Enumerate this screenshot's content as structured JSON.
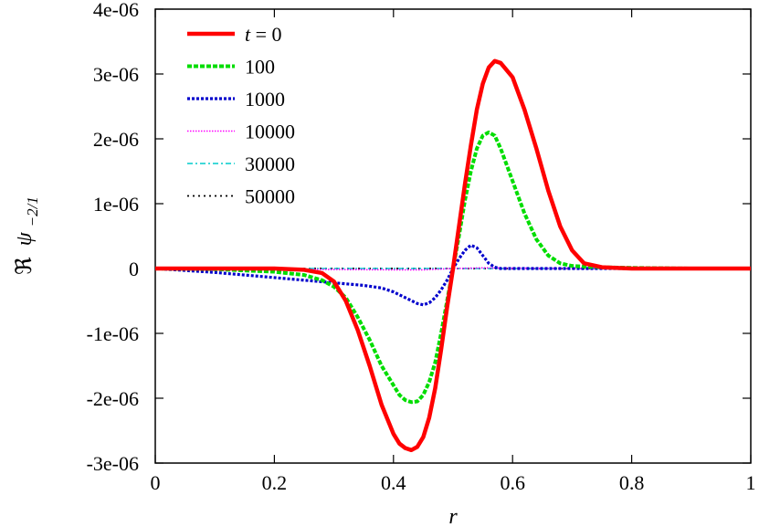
{
  "chart_data": {
    "type": "line",
    "xlabel": "r",
    "ylabel": "ℜ ψ−2/1",
    "ylabel_parts": {
      "prefix": "ℜ",
      "symbol": "ψ",
      "subscript": "−2/1"
    },
    "xlim": [
      0,
      1
    ],
    "ylim": [
      -3e-06,
      4e-06
    ],
    "xticks": [
      0,
      0.2,
      0.4,
      0.6,
      0.8,
      1
    ],
    "xtick_labels": [
      "0",
      "0.2",
      "0.4",
      "0.6",
      "0.8",
      "1"
    ],
    "yticks": [
      -3e-06,
      -2e-06,
      -1e-06,
      0,
      1e-06,
      2e-06,
      3e-06,
      4e-06
    ],
    "ytick_labels": [
      "-3e-06",
      "-2e-06",
      "-1e-06",
      "0",
      "1e-06",
      "2e-06",
      "3e-06",
      "4e-06"
    ],
    "grid": false,
    "legend_position": "top-left",
    "legend_title_prefix": "t = ",
    "series": [
      {
        "name": "0",
        "color": "#ff0000",
        "dash": "solid",
        "x": [
          0,
          0.05,
          0.1,
          0.15,
          0.2,
          0.25,
          0.28,
          0.3,
          0.32,
          0.34,
          0.36,
          0.38,
          0.4,
          0.41,
          0.42,
          0.43,
          0.44,
          0.45,
          0.46,
          0.47,
          0.48,
          0.49,
          0.5,
          0.51,
          0.52,
          0.53,
          0.54,
          0.55,
          0.56,
          0.57,
          0.58,
          0.6,
          0.62,
          0.64,
          0.66,
          0.68,
          0.7,
          0.72,
          0.75,
          0.8,
          0.9,
          1
        ],
        "y": [
          0,
          0,
          0,
          0,
          0,
          -2e-08,
          -7e-08,
          -2e-07,
          -5e-07,
          -9.5e-07,
          -1.5e-06,
          -2.1e-06,
          -2.55e-06,
          -2.7e-06,
          -2.77e-06,
          -2.8e-06,
          -2.75e-06,
          -2.6e-06,
          -2.3e-06,
          -1.85e-06,
          -1.25e-06,
          -6e-07,
          0,
          6.5e-07,
          1.3e-06,
          1.9e-06,
          2.45e-06,
          2.85e-06,
          3.1e-06,
          3.2e-06,
          3.17e-06,
          2.95e-06,
          2.45e-06,
          1.85e-06,
          1.2e-06,
          6.5e-07,
          2.8e-07,
          8e-08,
          2e-08,
          0,
          0,
          0
        ]
      },
      {
        "name": "100",
        "color": "#00dd00",
        "dash": "dash",
        "x": [
          0,
          0.1,
          0.2,
          0.25,
          0.28,
          0.3,
          0.32,
          0.34,
          0.36,
          0.38,
          0.4,
          0.41,
          0.42,
          0.43,
          0.44,
          0.45,
          0.46,
          0.47,
          0.48,
          0.49,
          0.5,
          0.51,
          0.52,
          0.53,
          0.54,
          0.55,
          0.56,
          0.57,
          0.58,
          0.6,
          0.62,
          0.64,
          0.66,
          0.68,
          0.7,
          0.72,
          0.75,
          0.8,
          0.9,
          1
        ],
        "y": [
          0,
          -1e-08,
          -5e-08,
          -1e-07,
          -1.8e-07,
          -2.8e-07,
          -4.5e-07,
          -7.5e-07,
          -1.1e-06,
          -1.5e-06,
          -1.8e-06,
          -1.95e-06,
          -2.03e-06,
          -2.06e-06,
          -2.05e-06,
          -1.95e-06,
          -1.75e-06,
          -1.45e-06,
          -1e-06,
          -5e-07,
          0,
          5e-07,
          1.05e-06,
          1.5e-06,
          1.85e-06,
          2.05e-06,
          2.1e-06,
          2.05e-06,
          1.85e-06,
          1.35e-06,
          8.5e-07,
          4.5e-07,
          2e-07,
          8e-08,
          4e-08,
          3e-08,
          2e-08,
          1e-08,
          0,
          0
        ]
      },
      {
        "name": "1000",
        "color": "#0000cc",
        "dash": "dot",
        "x": [
          0,
          0.05,
          0.1,
          0.15,
          0.2,
          0.25,
          0.3,
          0.35,
          0.38,
          0.4,
          0.42,
          0.44,
          0.45,
          0.46,
          0.47,
          0.48,
          0.49,
          0.5,
          0.51,
          0.52,
          0.53,
          0.54,
          0.55,
          0.56,
          0.57,
          0.58,
          0.6,
          0.7,
          0.8,
          1
        ],
        "y": [
          0,
          -3e-08,
          -6e-08,
          -1e-07,
          -1.4e-07,
          -1.8e-07,
          -2.2e-07,
          -2.6e-07,
          -3e-07,
          -3.6e-07,
          -4.5e-07,
          -5.4e-07,
          -5.6e-07,
          -5.3e-07,
          -4.5e-07,
          -3.3e-07,
          -1.8e-07,
          0,
          1.5e-07,
          2.8e-07,
          3.6e-07,
          3.2e-07,
          2e-07,
          8e-08,
          2e-08,
          0,
          0,
          0,
          0,
          0
        ]
      },
      {
        "name": "10000",
        "color": "#ff00ff",
        "dash": "fine-dot",
        "x": [
          0,
          0.1,
          0.2,
          0.3,
          0.4,
          0.45,
          0.5,
          0.55,
          0.6,
          0.7,
          0.8,
          0.9,
          1
        ],
        "y": [
          0,
          -5e-09,
          -1e-08,
          -1.5e-08,
          -2e-08,
          -2e-08,
          0,
          1e-08,
          5e-09,
          0,
          0,
          0,
          0
        ]
      },
      {
        "name": "30000",
        "color": "#00cccc",
        "dash": "dash-dot",
        "x": [
          0,
          0.1,
          0.2,
          0.3,
          0.4,
          0.5,
          0.6,
          0.7,
          0.8,
          0.9,
          1
        ],
        "y": [
          0,
          0,
          0,
          0,
          0,
          0,
          0,
          0,
          0,
          0,
          0
        ]
      },
      {
        "name": "50000",
        "color": "#000000",
        "dash": "sparse-dot",
        "x": [
          0,
          0.1,
          0.2,
          0.3,
          0.4,
          0.5,
          0.6,
          0.7,
          0.8,
          0.9,
          1
        ],
        "y": [
          0,
          0,
          0,
          0,
          0,
          0,
          0,
          0,
          0,
          0,
          0
        ]
      }
    ]
  }
}
